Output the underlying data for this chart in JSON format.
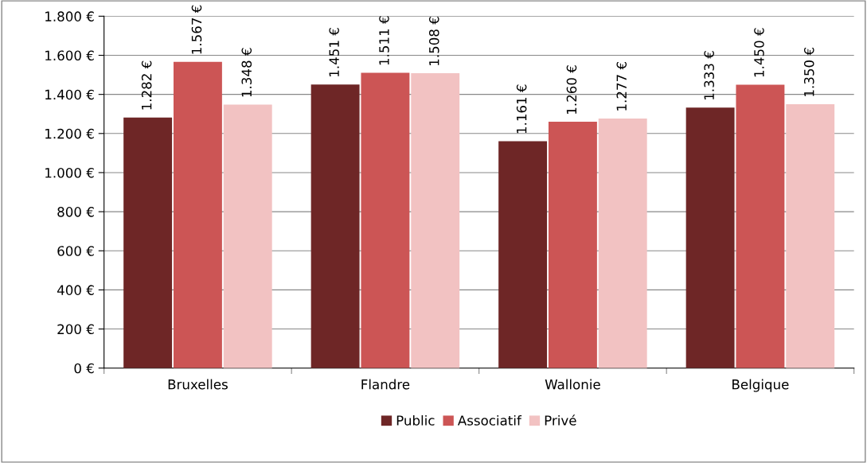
{
  "chart_data": {
    "type": "bar",
    "categories": [
      "Bruxelles",
      "Flandre",
      "Wallonie",
      "Belgique"
    ],
    "series": [
      {
        "name": "Public",
        "color": "#6e2626",
        "values": [
          1282,
          1451,
          1161,
          1333
        ],
        "value_labels": [
          "1.282 €",
          "1.451 €",
          "1.161 €",
          "1.333 €"
        ]
      },
      {
        "name": "Associatif",
        "color": "#cc5555",
        "values": [
          1567,
          1511,
          1260,
          1450
        ],
        "value_labels": [
          "1.567 €",
          "1.511 €",
          "1.260 €",
          "1.450 €"
        ]
      },
      {
        "name": "Privé",
        "color": "#f2c2c2",
        "values": [
          1348,
          1508,
          1277,
          1350
        ],
        "value_labels": [
          "1.348 €",
          "1.508 €",
          "1.277 €",
          "1.350 €"
        ]
      }
    ],
    "ylim": [
      0,
      1800
    ],
    "yticks": [
      {
        "value": 0,
        "label": "0 €"
      },
      {
        "value": 200,
        "label": "200 €"
      },
      {
        "value": 400,
        "label": "400 €"
      },
      {
        "value": 600,
        "label": "600 €"
      },
      {
        "value": 800,
        "label": "800 €"
      },
      {
        "value": 1000,
        "label": "1.000 €"
      },
      {
        "value": 1200,
        "label": "1.200 €"
      },
      {
        "value": 1400,
        "label": "1.400 €"
      },
      {
        "value": 1600,
        "label": "1.600 €"
      },
      {
        "value": 1800,
        "label": "1.800 €"
      }
    ],
    "grid": "y",
    "legend": "bottom"
  }
}
